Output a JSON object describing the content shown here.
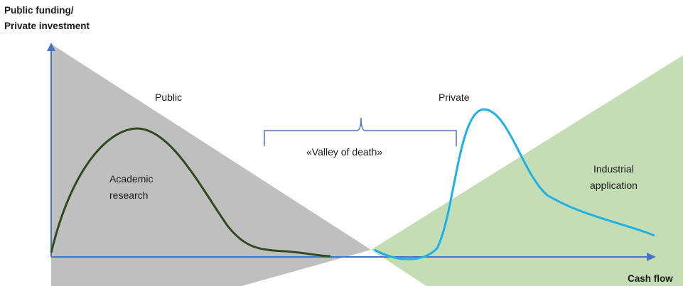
{
  "y_axis_label": [
    "Public funding/",
    "Private investment"
  ],
  "x_axis_label": "Cash flow",
  "regions": {
    "public": "Public",
    "private": "Private"
  },
  "curves": {
    "academic": [
      "Academic",
      "research"
    ],
    "industrial": [
      "Industrial",
      "application"
    ]
  },
  "gap_label": "«Valley of death»",
  "colors": {
    "public_area": "#bfbfbf",
    "private_area": "#c5ddb4",
    "academic_curve": "#2f4a1f",
    "industrial_curve": "#1eb0e8",
    "axis": "#4a72c4",
    "bracket": "#4a72c4"
  }
}
